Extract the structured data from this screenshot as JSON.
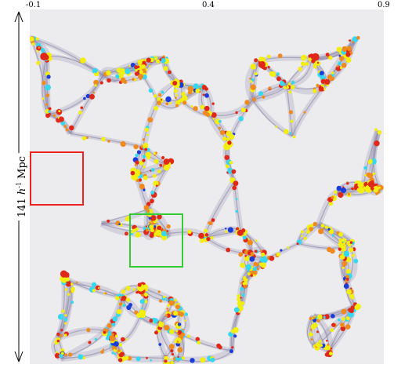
{
  "top_axis": {
    "ticks": [
      "-0.1",
      "0.4",
      "0.9"
    ]
  },
  "scale_bar": {
    "value": "141",
    "unit_pre": "h",
    "exponent": "-1",
    "unit": "Mpc"
  },
  "colors": {
    "background": "#ecebee",
    "filament": "#8a86a6",
    "halo_red": "#e02818",
    "halo_orange": "#f08a1c",
    "halo_yellow": "#f2ee10",
    "halo_cyan": "#34d8f0",
    "halo_blue": "#1a3cd8",
    "box_red": "#ee2222",
    "box_green": "#33cc33"
  },
  "highlight_regions": [
    "red-box",
    "green-box"
  ]
}
